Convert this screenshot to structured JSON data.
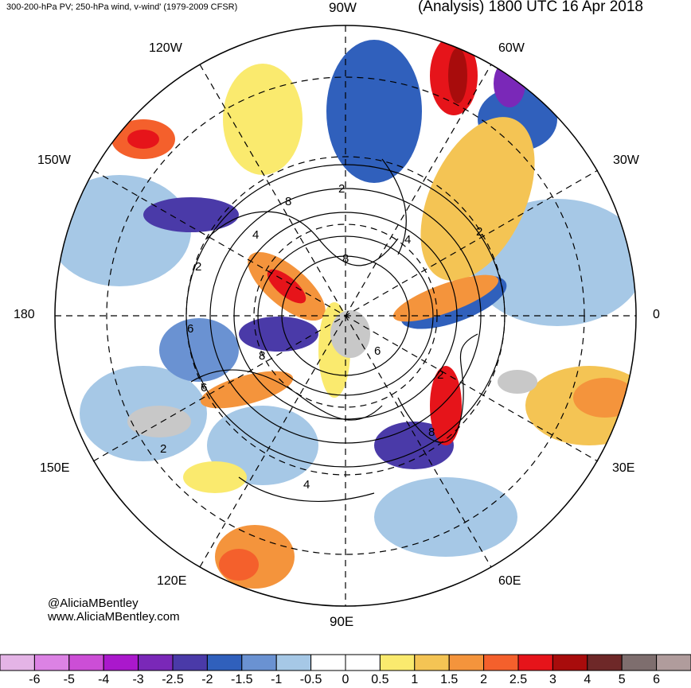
{
  "header": {
    "left_title": "300-200-hPa PV; 250-hPa wind, v-wind' (1979-2009 CFSR)",
    "right_title": "(Analysis) 1800 UTC 16 Apr 2018"
  },
  "longitude_labels": {
    "top": "90W",
    "top_left": "120W",
    "top_right": "60W",
    "upper_left": "150W",
    "upper_right": "30W",
    "left": "180",
    "right": "0",
    "lower_left": "150E",
    "lower_right": "30E",
    "bottom_left": "120E",
    "bottom_right": "60E",
    "bottom": "90E"
  },
  "contour_labels": [
    "2",
    "4",
    "8",
    "2",
    "4",
    "6",
    "2",
    "8",
    "6",
    "2",
    "4",
    "8",
    "8",
    "6",
    "2"
  ],
  "credits": {
    "handle": "@AliciaMBentley",
    "website": "www.AliciaMBentley.com"
  },
  "colorbar": {
    "ticks": [
      "-6",
      "-5",
      "-4",
      "-3",
      "-2.5",
      "-2",
      "-1.5",
      "-1",
      "-0.5",
      "0",
      "0.5",
      "1",
      "1.5",
      "2",
      "2.5",
      "3",
      "4",
      "5",
      "6"
    ],
    "colors": [
      "#e4b4e6",
      "#dc82e4",
      "#cc4ed6",
      "#aa18cc",
      "#7a28b8",
      "#4a3aa8",
      "#3060bc",
      "#6a92d2",
      "#a6c8e6",
      "#ffffff",
      "#ffffff",
      "#faea6e",
      "#f4c454",
      "#f4943c",
      "#f4602c",
      "#e6141a",
      "#a80c0c",
      "#6e2828",
      "#7e6e6e",
      "#b09c9c"
    ]
  }
}
